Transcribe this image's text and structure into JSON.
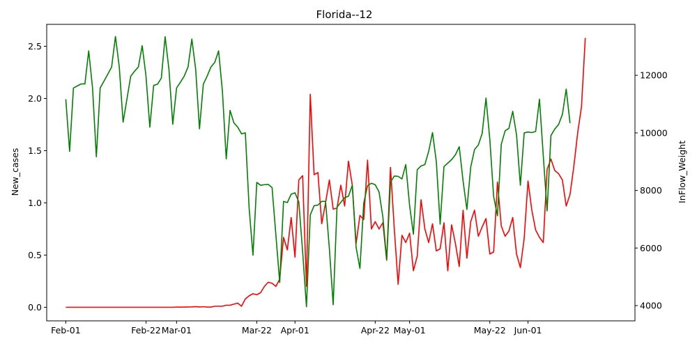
{
  "chart_data": {
    "type": "line",
    "title": "Florida--12",
    "ylabel": "New_cases",
    "y2label": "InFlow_Weight",
    "grid": false,
    "x_start_date": "2020-02-01",
    "x_tick_labels": [
      {
        "label": "Feb-01",
        "date": "2020-02-01"
      },
      {
        "label": "Feb-22",
        "date": "2020-02-22"
      },
      {
        "label": "Mar-01",
        "date": "2020-03-01"
      },
      {
        "label": "Mar-22",
        "date": "2020-03-22"
      },
      {
        "label": "Apr-01",
        "date": "2020-04-01"
      },
      {
        "label": "Apr-22",
        "date": "2020-04-22"
      },
      {
        "label": "May-01",
        "date": "2020-05-01"
      },
      {
        "label": "May-22",
        "date": "2020-05-22"
      },
      {
        "label": "Jun-01",
        "date": "2020-06-01"
      }
    ],
    "xlim": [
      "2020-01-27",
      "2020-06-29"
    ],
    "y_ticks": [
      "0.0",
      "0.5",
      "1.0",
      "1.5",
      "2.0",
      "2.5"
    ],
    "ylim": [
      -0.13,
      2.71
    ],
    "y2_ticks": [
      "4000",
      "6000",
      "8000",
      "10000",
      "12000"
    ],
    "y2lim": [
      3470,
      13770
    ],
    "series": [
      {
        "name": "New_cases",
        "axis": "left",
        "color": "#ff0000",
        "values": [
          0,
          0,
          0,
          0,
          0,
          0,
          0,
          0,
          0,
          0,
          0,
          0,
          0,
          0,
          0,
          0,
          0,
          0,
          0,
          0,
          0,
          0,
          0,
          0,
          0,
          0,
          0,
          0,
          0,
          0.002,
          0.001,
          0.002,
          0.003,
          0.004,
          0.006,
          0.003,
          0.005,
          0.002,
          0.002,
          0.01,
          0.01,
          0.01,
          0.02,
          0.02,
          0.03,
          0.04,
          0.01,
          0.08,
          0.11,
          0.13,
          0.12,
          0.14,
          0.2,
          0.24,
          0.23,
          0.2,
          0.27,
          0.67,
          0.55,
          0.86,
          0.48,
          1.22,
          1.26,
          0.2,
          2.04,
          1.27,
          1.29,
          0.8,
          1.0,
          1.22,
          0.94,
          0.95,
          1.17,
          0.97,
          1.4,
          1.17,
          0.61,
          0.88,
          0.84,
          1.41,
          0.75,
          0.82,
          0.75,
          0.81,
          0.45,
          1.34,
          0.75,
          0.22,
          0.69,
          0.62,
          0.71,
          0.35,
          0.49,
          1.03,
          0.75,
          0.62,
          0.8,
          0.54,
          0.56,
          0.81,
          0.35,
          0.79,
          0.61,
          0.39,
          0.93,
          0.47,
          0.82,
          0.93,
          0.68,
          0.77,
          0.85,
          0.51,
          0.53,
          1.2,
          0.78,
          0.68,
          0.73,
          0.86,
          0.51,
          0.38,
          0.66,
          1.21,
          0.93,
          0.74,
          0.67,
          0.62,
          1.32,
          1.42,
          1.31,
          1.28,
          1.22,
          0.97,
          1.08,
          1.35,
          1.67,
          1.92,
          2.58
        ]
      },
      {
        "name": "InFlow_Weight",
        "axis": "right",
        "color": "#008000",
        "values": [
          11170,
          9360,
          11560,
          11630,
          11700,
          11700,
          12850,
          11560,
          9170,
          11560,
          11800,
          12040,
          12290,
          13350,
          12290,
          10370,
          11170,
          11970,
          12140,
          12290,
          13030,
          11970,
          10200,
          11650,
          11690,
          11900,
          13340,
          12210,
          10300,
          11560,
          11760,
          11970,
          12290,
          13260,
          12210,
          10140,
          11690,
          11970,
          12290,
          12450,
          12850,
          11450,
          9100,
          10780,
          10350,
          10200,
          9970,
          10000,
          7380,
          5750,
          8280,
          8180,
          8200,
          8210,
          8100,
          6450,
          4800,
          7620,
          7580,
          7870,
          7920,
          7600,
          5880,
          3960,
          7150,
          7470,
          7490,
          7620,
          7620,
          5980,
          4030,
          7420,
          7590,
          7750,
          7800,
          8180,
          6020,
          5290,
          7560,
          8170,
          8250,
          8200,
          7950,
          7080,
          5600,
          8290,
          8500,
          8490,
          8400,
          8900,
          7480,
          6480,
          8720,
          8850,
          8900,
          9360,
          10010,
          9000,
          6830,
          8830,
          8950,
          9070,
          9240,
          9520,
          8330,
          7340,
          8810,
          9420,
          9580,
          9980,
          11210,
          9780,
          7790,
          7120,
          9600,
          10070,
          10160,
          10750,
          9930,
          8180,
          10000,
          10030,
          10010,
          10050,
          11170,
          9200,
          7290,
          9910,
          10130,
          10290,
          10640,
          11520,
          10340
        ]
      }
    ]
  }
}
